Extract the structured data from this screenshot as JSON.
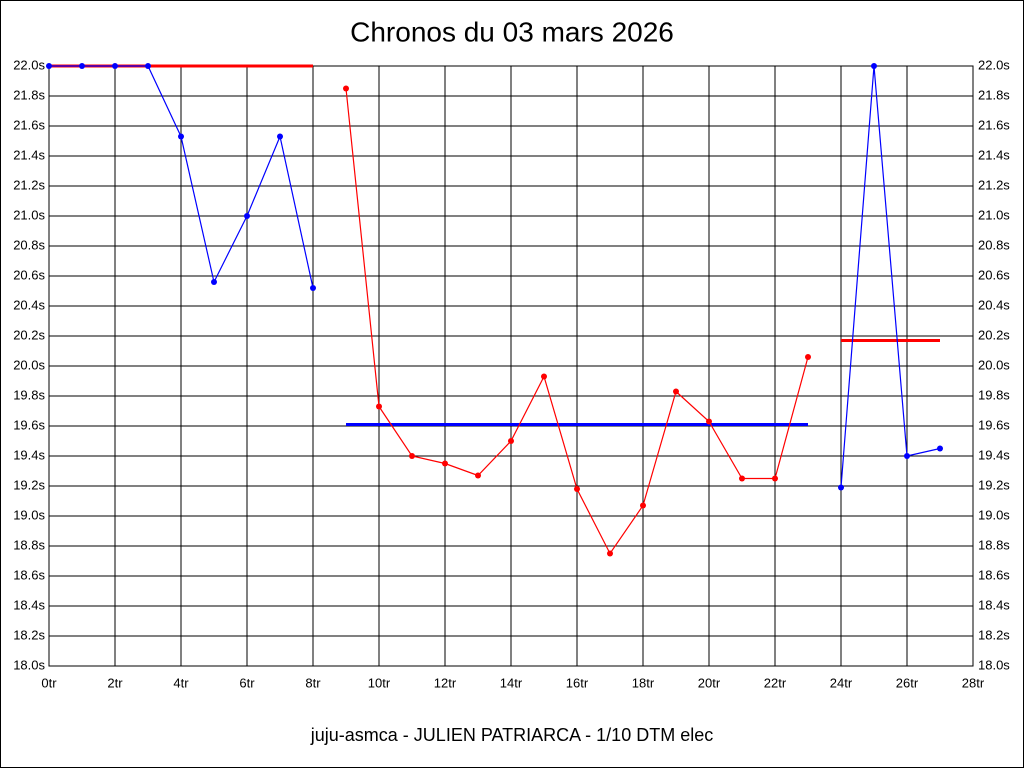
{
  "chart_data": {
    "type": "line",
    "title": "Chronos du 03 mars 2026",
    "subtitle": "juju-asmca - JULIEN PATRIARCA - 1/10 DTM elec",
    "xlim": [
      0,
      28
    ],
    "ylim": [
      18,
      22
    ],
    "grid": true,
    "xticks": [
      {
        "value": 0,
        "label": "0tr"
      },
      {
        "value": 2,
        "label": "2tr"
      },
      {
        "value": 4,
        "label": "4tr"
      },
      {
        "value": 6,
        "label": "6tr"
      },
      {
        "value": 8,
        "label": "8tr"
      },
      {
        "value": 10,
        "label": "10tr"
      },
      {
        "value": 12,
        "label": "12tr"
      },
      {
        "value": 14,
        "label": "14tr"
      },
      {
        "value": 16,
        "label": "16tr"
      },
      {
        "value": 18,
        "label": "18tr"
      },
      {
        "value": 20,
        "label": "20tr"
      },
      {
        "value": 22,
        "label": "22tr"
      },
      {
        "value": 24,
        "label": "24tr"
      },
      {
        "value": 26,
        "label": "26tr"
      },
      {
        "value": 28,
        "label": "28tr"
      }
    ],
    "yticks": [
      {
        "value": 18.0,
        "label": "18.0s"
      },
      {
        "value": 18.2,
        "label": "18.2s"
      },
      {
        "value": 18.4,
        "label": "18.4s"
      },
      {
        "value": 18.6,
        "label": "18.6s"
      },
      {
        "value": 18.8,
        "label": "18.8s"
      },
      {
        "value": 19.0,
        "label": "19.0s"
      },
      {
        "value": 19.2,
        "label": "19.2s"
      },
      {
        "value": 19.4,
        "label": "19.4s"
      },
      {
        "value": 19.6,
        "label": "19.6s"
      },
      {
        "value": 19.8,
        "label": "19.8s"
      },
      {
        "value": 20.0,
        "label": "20.0s"
      },
      {
        "value": 20.2,
        "label": "20.2s"
      },
      {
        "value": 20.4,
        "label": "20.4s"
      },
      {
        "value": 20.6,
        "label": "20.6s"
      },
      {
        "value": 20.8,
        "label": "20.8s"
      },
      {
        "value": 21.0,
        "label": "21.0s"
      },
      {
        "value": 21.2,
        "label": "21.2s"
      },
      {
        "value": 21.4,
        "label": "21.4s"
      },
      {
        "value": 21.6,
        "label": "21.6s"
      },
      {
        "value": 21.8,
        "label": "21.8s"
      },
      {
        "value": 22.0,
        "label": "22.0s"
      }
    ],
    "series": [
      {
        "color": "#0000ff",
        "x": [
          0,
          1,
          2,
          3,
          4,
          5,
          6,
          7,
          8
        ],
        "values": [
          22.0,
          22.0,
          22.0,
          22.0,
          21.53,
          20.56,
          21.0,
          21.53,
          20.52
        ]
      },
      {
        "color": "#ff0000",
        "x": [
          9,
          10,
          11,
          12,
          13,
          14,
          15,
          16,
          17,
          18,
          19,
          20,
          21,
          22,
          23
        ],
        "values": [
          21.85,
          19.73,
          19.4,
          19.35,
          19.27,
          19.5,
          19.93,
          19.18,
          18.75,
          19.07,
          19.83,
          19.63,
          19.25,
          19.25,
          20.06
        ]
      },
      {
        "color": "#0000ff",
        "x": [
          24,
          25,
          26,
          27
        ],
        "values": [
          19.19,
          22.0,
          19.4,
          19.45
        ]
      }
    ],
    "reference_lines": [
      {
        "color": "#ff0000",
        "x": [
          0,
          8
        ],
        "value": 22.0
      },
      {
        "color": "#0000ff",
        "x": [
          9,
          23
        ],
        "value": 19.61
      },
      {
        "color": "#ff0000",
        "x": [
          24,
          27
        ],
        "value": 20.17
      }
    ]
  }
}
